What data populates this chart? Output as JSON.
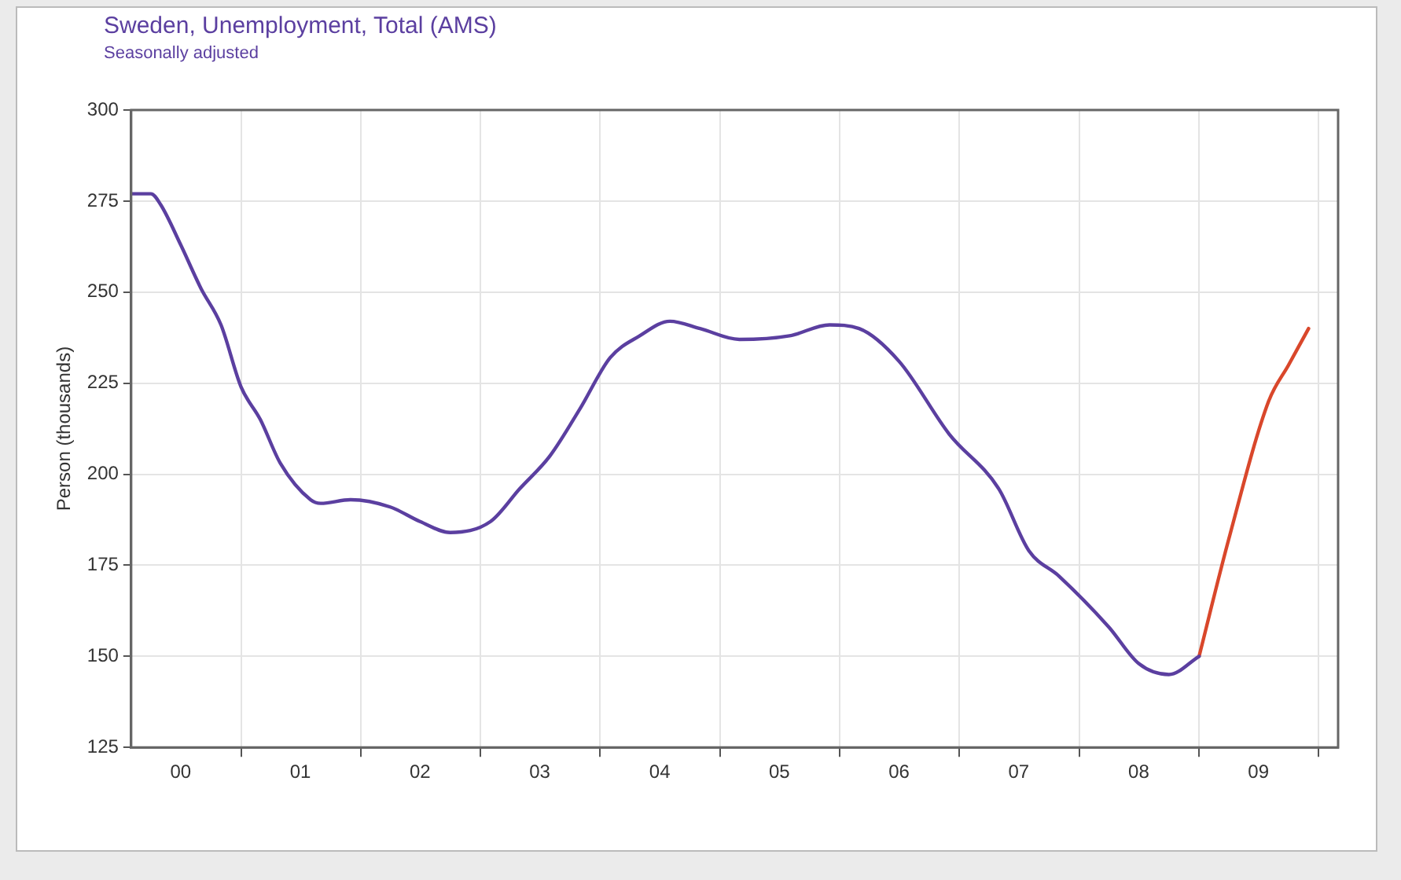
{
  "chart_data": {
    "type": "line",
    "title": "Sweden, Unemployment, Total (AMS)",
    "subtitle": "Seasonally adjusted",
    "ylabel": "Person (thousands)",
    "xlim": [
      "2000-02",
      "2010-03"
    ],
    "ylim": [
      125,
      300
    ],
    "yticks": [
      125,
      150,
      175,
      200,
      225,
      250,
      275,
      300
    ],
    "xticks": [
      {
        "value": "2000-07",
        "label": "00"
      },
      {
        "value": "2001",
        "label": null
      },
      {
        "value": "2001-07",
        "label": "01"
      },
      {
        "value": "2002",
        "label": null
      },
      {
        "value": "2002-07",
        "label": "02"
      },
      {
        "value": "2003",
        "label": null
      },
      {
        "value": "2003-07",
        "label": "03"
      },
      {
        "value": "2004",
        "label": null
      },
      {
        "value": "2004-07",
        "label": "04"
      },
      {
        "value": "2005",
        "label": null
      },
      {
        "value": "2005-07",
        "label": "05"
      },
      {
        "value": "2006",
        "label": null
      },
      {
        "value": "2006-07",
        "label": "06"
      },
      {
        "value": "2007",
        "label": null
      },
      {
        "value": "2007-07",
        "label": "07"
      },
      {
        "value": "2008",
        "label": null
      },
      {
        "value": "2008-07",
        "label": "08"
      },
      {
        "value": "2009",
        "label": null
      },
      {
        "value": "2009-07",
        "label": "09"
      },
      {
        "value": "2010",
        "label": null
      }
    ],
    "grid": true,
    "marker": "none",
    "line_style": "solid",
    "legend": false,
    "series": [
      {
        "color": "#5b3fa0",
        "x": [
          "2000-02",
          "2000-04",
          "2000-05",
          "2000-07",
          "2000-09",
          "2000-11",
          "2001-01",
          "2001-03",
          "2001-05",
          "2001-08",
          "2001-09",
          "2001-12",
          "2002-04",
          "2002-07",
          "2002-10",
          "2003-02",
          "2003-05",
          "2003-08",
          "2003-11",
          "2004-02",
          "2004-05",
          "2004-08",
          "2004-11",
          "2005-03",
          "2005-08",
          "2005-12",
          "2006-03",
          "2006-07",
          "2006-12",
          "2007-05",
          "2007-08",
          "2007-11",
          "2008-04",
          "2008-07",
          "2008-10",
          "2009-01"
        ],
        "values": [
          277,
          277,
          274,
          263,
          251,
          241,
          224,
          215,
          203,
          193,
          192,
          193,
          191,
          187,
          184,
          187,
          196,
          205,
          218,
          232,
          238,
          242,
          240,
          237,
          238,
          241,
          240,
          231,
          211,
          196,
          179,
          172,
          158,
          148,
          145,
          150
        ]
      },
      {
        "color": "#d9472b",
        "x": [
          "2009-01",
          "2009-04",
          "2009-08",
          "2009-10",
          "2009-12"
        ],
        "values": [
          150,
          182,
          220,
          230,
          240
        ]
      }
    ]
  }
}
